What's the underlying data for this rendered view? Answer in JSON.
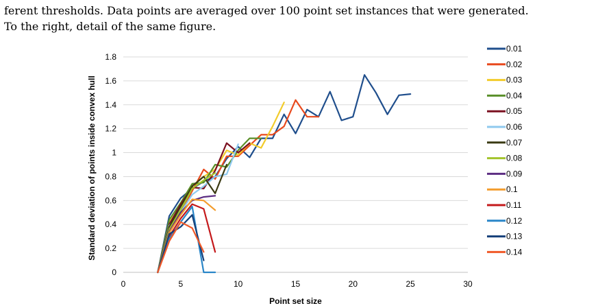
{
  "caption": {
    "line1": "ferent thresholds. Data points are averaged over 100 point set instances that were generated.",
    "line2": "To the right, detail of the same figure."
  },
  "chart_data": {
    "type": "line",
    "title": "",
    "xlabel": "Point set size",
    "ylabel": "Standard deviation of points inside convex hull",
    "xlim": [
      0,
      30
    ],
    "ylim": [
      0,
      1.8
    ],
    "xticks": [
      0,
      5,
      10,
      15,
      20,
      25,
      30
    ],
    "yticks": [
      0,
      0.2,
      0.4,
      0.6,
      0.8,
      1,
      1.2,
      1.4,
      1.6,
      1.8
    ],
    "ytick_labels": [
      "0",
      "0.2",
      "0.4",
      "0.6",
      "0.8",
      "1",
      "1.2",
      "1.4",
      "1.6",
      "1.8"
    ],
    "grid": "horizontal",
    "legend": "right",
    "series": [
      {
        "name": "0.01",
        "color": "#1f4e8c",
        "x": [
          3,
          4,
          5,
          6,
          7,
          8,
          9,
          10,
          11,
          12,
          13,
          14,
          15,
          16,
          17,
          18,
          19,
          20,
          21,
          22,
          23,
          24,
          25
        ],
        "y": [
          0,
          0.47,
          0.62,
          0.7,
          0.76,
          0.8,
          0.95,
          1.05,
          0.96,
          1.12,
          1.12,
          1.32,
          1.16,
          1.36,
          1.3,
          1.51,
          1.27,
          1.3,
          1.65,
          1.5,
          1.32,
          1.48,
          1.49
        ]
      },
      {
        "name": "0.02",
        "color": "#e8491d",
        "x": [
          3,
          4,
          5,
          6,
          7,
          8,
          9,
          10,
          11,
          12,
          13,
          14,
          15,
          16,
          17
        ],
        "y": [
          0,
          0.4,
          0.5,
          0.68,
          0.86,
          0.78,
          0.97,
          0.97,
          1.06,
          1.15,
          1.15,
          1.22,
          1.44,
          1.3,
          1.3
        ]
      },
      {
        "name": "0.03",
        "color": "#f2cb2a",
        "x": [
          3,
          4,
          5,
          6,
          7,
          8,
          9,
          10,
          11,
          12,
          13,
          14
        ],
        "y": [
          0,
          0.42,
          0.55,
          0.72,
          0.8,
          0.86,
          1.02,
          0.98,
          1.08,
          1.04,
          1.22,
          1.42
        ]
      },
      {
        "name": "0.04",
        "color": "#5a8f29",
        "x": [
          3,
          4,
          5,
          6,
          7,
          8,
          9,
          10,
          11,
          12
        ],
        "y": [
          0,
          0.44,
          0.58,
          0.74,
          0.75,
          0.9,
          0.88,
          1.02,
          1.12,
          1.12
        ]
      },
      {
        "name": "0.05",
        "color": "#7b1020",
        "x": [
          3,
          4,
          5,
          6,
          7,
          8,
          9,
          10,
          11
        ],
        "y": [
          0,
          0.4,
          0.57,
          0.71,
          0.7,
          0.85,
          1.08,
          1.0,
          1.08
        ]
      },
      {
        "name": "0.06",
        "color": "#8ec9ee",
        "x": [
          3,
          4,
          5,
          6,
          7,
          8,
          9,
          10
        ],
        "y": [
          0,
          0.39,
          0.5,
          0.65,
          0.72,
          0.8,
          0.82,
          1.07
        ]
      },
      {
        "name": "0.07",
        "color": "#3a3a12",
        "x": [
          3,
          4,
          5,
          6,
          7,
          8,
          9
        ],
        "y": [
          0,
          0.38,
          0.55,
          0.72,
          0.8,
          0.66,
          0.9
        ]
      },
      {
        "name": "0.08",
        "color": "#a3c42b",
        "x": [
          3,
          4,
          5,
          6,
          7,
          8
        ],
        "y": [
          0,
          0.36,
          0.52,
          0.7,
          0.77,
          0.83
        ]
      },
      {
        "name": "0.09",
        "color": "#5c2d82",
        "x": [
          3,
          4,
          5,
          6,
          7,
          8
        ],
        "y": [
          0,
          0.34,
          0.5,
          0.6,
          0.63,
          0.64
        ]
      },
      {
        "name": "0.1",
        "color": "#f39c2c",
        "x": [
          3,
          4,
          5,
          6,
          7,
          8
        ],
        "y": [
          0,
          0.33,
          0.48,
          0.61,
          0.6,
          0.52
        ]
      },
      {
        "name": "0.11",
        "color": "#c4191b",
        "x": [
          3,
          4,
          5,
          6,
          7,
          8
        ],
        "y": [
          0,
          0.3,
          0.45,
          0.57,
          0.53,
          0.17
        ]
      },
      {
        "name": "0.12",
        "color": "#2a86c8",
        "x": [
          3,
          4,
          5,
          6,
          7,
          8
        ],
        "y": [
          0,
          0.28,
          0.42,
          0.55,
          0,
          0
        ]
      },
      {
        "name": "0.13",
        "color": "#16407a",
        "x": [
          3,
          4,
          5,
          6,
          7
        ],
        "y": [
          0,
          0.32,
          0.38,
          0.48,
          0.1
        ]
      },
      {
        "name": "0.14",
        "color": "#f05a28",
        "x": [
          3,
          4,
          5,
          6,
          7
        ],
        "y": [
          0,
          0.26,
          0.42,
          0.37,
          0.17
        ]
      }
    ]
  }
}
